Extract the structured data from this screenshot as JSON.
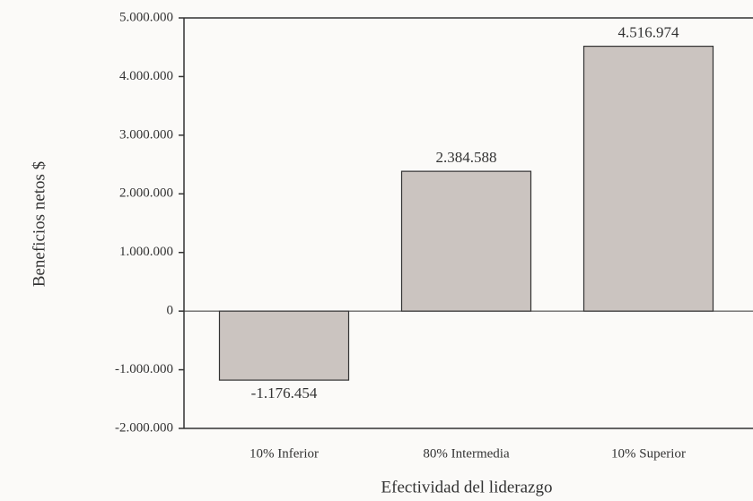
{
  "chart_data": {
    "type": "bar",
    "categories": [
      "10% Inferior",
      "80% Intermedia",
      "10% Superior"
    ],
    "values": [
      -1176454,
      2384588,
      4516974
    ],
    "value_labels": [
      "-1.176.454",
      "2.384.588",
      "4.516.974"
    ],
    "color": "#cbc4c0",
    "y_label": "Beneficios netos $",
    "x_label": "Efectividad del liderazgo",
    "ylim": [
      -2000000,
      5000000
    ],
    "yticks": [
      {
        "value": -2000000,
        "label": "-2.000.000"
      },
      {
        "value": -1000000,
        "label": "-1.000.000"
      },
      0,
      {
        "value": 1000000,
        "label": "1.000.000"
      },
      {
        "value": 2000000,
        "label": "2.000.000"
      },
      {
        "value": 3000000,
        "label": "3.000.000"
      },
      {
        "value": 4000000,
        "label": "4.000.000"
      },
      {
        "value": 5000000,
        "label": "5.000.000"
      }
    ],
    "grid": false
  }
}
